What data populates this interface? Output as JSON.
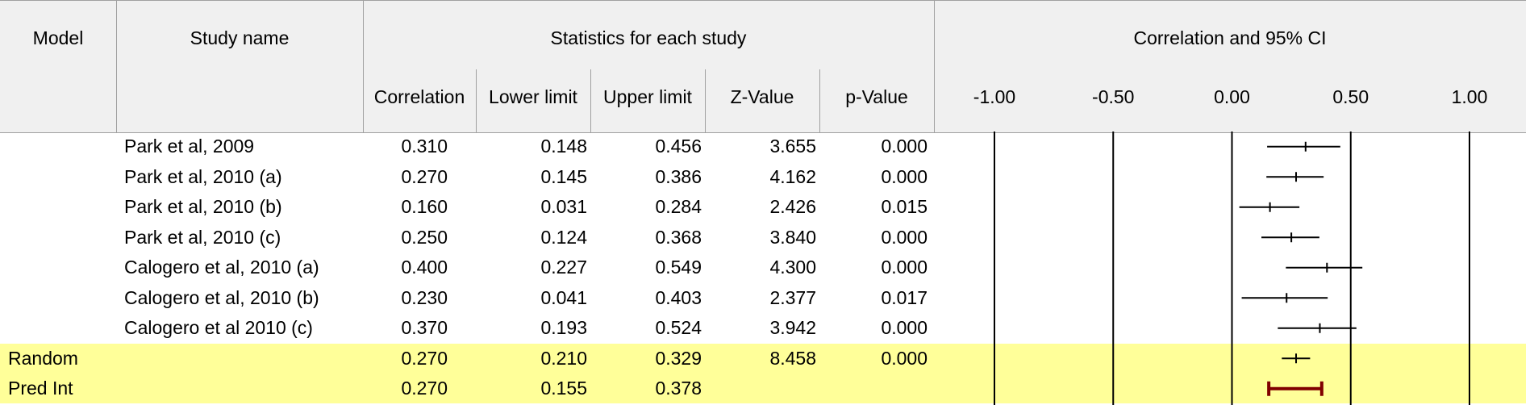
{
  "header": {
    "model": "Model",
    "study_name": "Study name",
    "stats_group": "Statistics for each study",
    "plot_group": "Correlation and 95% CI",
    "columns": {
      "correlation": "Correlation",
      "lower": "Lower limit",
      "upper": "Upper limit",
      "z": "Z-Value",
      "p": "p-Value"
    },
    "axis_ticks": [
      "-1.00",
      "-0.50",
      "0.00",
      "0.50",
      "1.00"
    ]
  },
  "rows": [
    {
      "model": "",
      "name": "Park et al, 2009",
      "correlation": "0.310",
      "lower": "0.148",
      "upper": "0.456",
      "z": "3.655",
      "p": "0.000"
    },
    {
      "model": "",
      "name": "Park et al, 2010 (a)",
      "correlation": "0.270",
      "lower": "0.145",
      "upper": "0.386",
      "z": "4.162",
      "p": "0.000"
    },
    {
      "model": "",
      "name": "Park et al, 2010 (b)",
      "correlation": "0.160",
      "lower": "0.031",
      "upper": "0.284",
      "z": "2.426",
      "p": "0.015"
    },
    {
      "model": "",
      "name": "Park et al, 2010 (c)",
      "correlation": "0.250",
      "lower": "0.124",
      "upper": "0.368",
      "z": "3.840",
      "p": "0.000"
    },
    {
      "model": "",
      "name": "Calogero et al, 2010 (a)",
      "correlation": "0.400",
      "lower": "0.227",
      "upper": "0.549",
      "z": "4.300",
      "p": "0.000"
    },
    {
      "model": "",
      "name": "Calogero et al, 2010 (b)",
      "correlation": "0.230",
      "lower": "0.041",
      "upper": "0.403",
      "z": "2.377",
      "p": "0.017"
    },
    {
      "model": "",
      "name": "Calogero et al 2010 (c)",
      "correlation": "0.370",
      "lower": "0.193",
      "upper": "0.524",
      "z": "3.942",
      "p": "0.000"
    },
    {
      "model": "Random",
      "name": "",
      "correlation": "0.270",
      "lower": "0.210",
      "upper": "0.329",
      "z": "8.458",
      "p": "0.000",
      "summary": true
    },
    {
      "model": "Pred Int",
      "name": "",
      "correlation": "0.270",
      "lower": "0.155",
      "upper": "0.378",
      "z": "",
      "p": "",
      "summary": true,
      "pred": true
    }
  ],
  "colors": {
    "summary_bg": "#ffff99",
    "pred_interval": "#800000",
    "ci_line": "#000000"
  },
  "chart_data": {
    "type": "forest",
    "xlabel": "Correlation and 95% CI",
    "xlim": [
      -1.0,
      1.0
    ],
    "ticks": [
      -1.0,
      -0.5,
      0.0,
      0.5,
      1.0
    ],
    "reference_lines": [
      -1.0,
      -0.5,
      0.0,
      0.5,
      1.0
    ],
    "series": [
      {
        "label": "Park et al, 2009",
        "estimate": 0.31,
        "lower": 0.148,
        "upper": 0.456
      },
      {
        "label": "Park et al, 2010 (a)",
        "estimate": 0.27,
        "lower": 0.145,
        "upper": 0.386
      },
      {
        "label": "Park et al, 2010 (b)",
        "estimate": 0.16,
        "lower": 0.031,
        "upper": 0.284
      },
      {
        "label": "Park et al, 2010 (c)",
        "estimate": 0.25,
        "lower": 0.124,
        "upper": 0.368
      },
      {
        "label": "Calogero et al, 2010 (a)",
        "estimate": 0.4,
        "lower": 0.227,
        "upper": 0.549
      },
      {
        "label": "Calogero et al, 2010 (b)",
        "estimate": 0.23,
        "lower": 0.041,
        "upper": 0.403
      },
      {
        "label": "Calogero et al 2010 (c)",
        "estimate": 0.37,
        "lower": 0.193,
        "upper": 0.524
      },
      {
        "label": "Random",
        "estimate": 0.27,
        "lower": 0.21,
        "upper": 0.329
      },
      {
        "label": "Pred Int",
        "estimate": 0.27,
        "lower": 0.155,
        "upper": 0.378,
        "prediction_interval": true
      }
    ]
  }
}
